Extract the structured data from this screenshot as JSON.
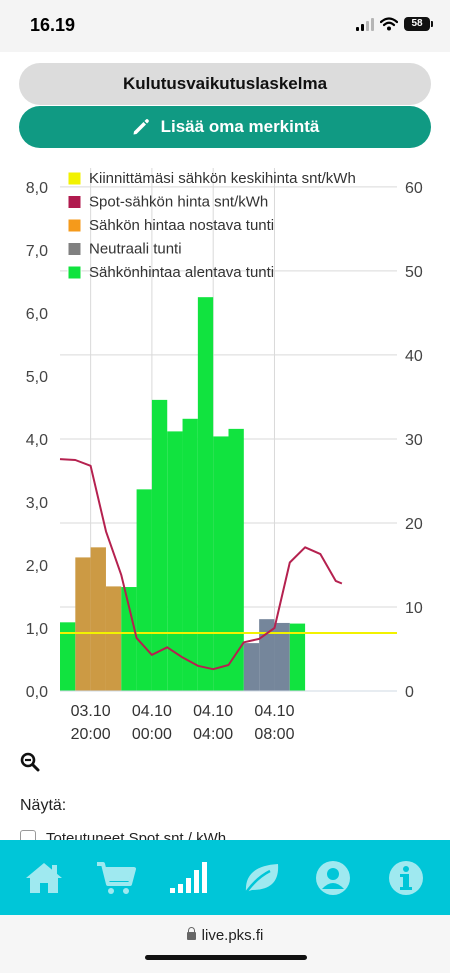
{
  "status_bar": {
    "time": "16.19",
    "battery": "58"
  },
  "buttons": {
    "report_label": "Kulutusvaikutuslaskelma",
    "add_entry_label": "Lisää oma merkintä"
  },
  "chart_data": {
    "type": "bar",
    "legend": [
      {
        "label": "Kiinnittämäsi sähkön keskihinta snt/kWh",
        "color": "#f2f200"
      },
      {
        "label": "Spot-sähkön hinta snt/kWh",
        "color": "#b01a4e"
      },
      {
        "label": "Sähkön hintaa nostava tunti",
        "color": "#f59a1b"
      },
      {
        "label": "Neutraali tunti",
        "color": "#808080"
      },
      {
        "label": "Sähkönhintaa alentava tunti",
        "color": "#10e33e"
      }
    ],
    "colors": {
      "raise": "#cc9a44",
      "neutral": "#75869b",
      "lower": "#11e33f",
      "spot_line": "#b5214f",
      "fixed_line": "#f2f200"
    },
    "x_hours": [
      18,
      19,
      20,
      21,
      22,
      23,
      24,
      25,
      26,
      27,
      28,
      29,
      30,
      31,
      32,
      33,
      34,
      35,
      36,
      37,
      38,
      39,
      40
    ],
    "x_ticks": [
      {
        "x": 20,
        "date": "03.10",
        "time": "20:00"
      },
      {
        "x": 24,
        "date": "04.10",
        "time": "00:00"
      },
      {
        "x": 28,
        "date": "04.10",
        "time": "04:00"
      },
      {
        "x": 32,
        "date": "04.10",
        "time": "08:00"
      }
    ],
    "bars": [
      {
        "x": 18.5,
        "value": 1.09,
        "kind": "lower"
      },
      {
        "x": 19.5,
        "value": 2.12,
        "kind": "raise"
      },
      {
        "x": 20.5,
        "value": 2.28,
        "kind": "raise"
      },
      {
        "x": 21.5,
        "value": 1.66,
        "kind": "raise"
      },
      {
        "x": 22.5,
        "value": 1.65,
        "kind": "lower"
      },
      {
        "x": 23.5,
        "value": 3.2,
        "kind": "lower"
      },
      {
        "x": 24.5,
        "value": 4.62,
        "kind": "lower"
      },
      {
        "x": 25.5,
        "value": 4.12,
        "kind": "lower"
      },
      {
        "x": 26.5,
        "value": 4.32,
        "kind": "lower"
      },
      {
        "x": 27.5,
        "value": 6.25,
        "kind": "lower"
      },
      {
        "x": 28.5,
        "value": 4.04,
        "kind": "lower"
      },
      {
        "x": 29.5,
        "value": 4.16,
        "kind": "lower"
      },
      {
        "x": 30.5,
        "value": 0.76,
        "kind": "neutral"
      },
      {
        "x": 31.5,
        "value": 1.14,
        "kind": "neutral"
      },
      {
        "x": 32.5,
        "value": 1.08,
        "kind": "neutral"
      },
      {
        "x": 33.5,
        "value": 1.07,
        "kind": "lower"
      }
    ],
    "spot_price": [
      {
        "x": 18,
        "y": 27.6
      },
      {
        "x": 19,
        "y": 27.5
      },
      {
        "x": 20,
        "y": 26.8
      },
      {
        "x": 21,
        "y": 19.0
      },
      {
        "x": 22,
        "y": 13.8
      },
      {
        "x": 23,
        "y": 6.3
      },
      {
        "x": 24,
        "y": 4.3
      },
      {
        "x": 25,
        "y": 5.2
      },
      {
        "x": 26,
        "y": 4.0
      },
      {
        "x": 27,
        "y": 3.0
      },
      {
        "x": 28,
        "y": 2.6
      },
      {
        "x": 29,
        "y": 3.1
      },
      {
        "x": 30,
        "y": 5.8
      },
      {
        "x": 31,
        "y": 6.2
      },
      {
        "x": 32,
        "y": 7.5
      },
      {
        "x": 33,
        "y": 15.3
      },
      {
        "x": 34,
        "y": 17.1
      },
      {
        "x": 35,
        "y": 16.3
      },
      {
        "x": 36,
        "y": 13.1
      },
      {
        "x": 36.4,
        "y": 12.8
      }
    ],
    "fixed_price": 6.9,
    "y_left": {
      "min": 0,
      "max": 8.3,
      "ticks": [
        "0,0",
        "1,0",
        "2,0",
        "3,0",
        "4,0",
        "5,0",
        "6,0",
        "7,0",
        "8,0"
      ]
    },
    "y_right": {
      "min": 0,
      "max": 62.25,
      "ticks": [
        "0",
        "10",
        "20",
        "30",
        "40",
        "50",
        "60"
      ]
    },
    "grid": true,
    "legend_position": "top-left"
  },
  "controls": {
    "show_label": "Näytä:",
    "hidden_row_label": "Toteutuneet Spot snt / kWh"
  },
  "tab_bar": {
    "items": [
      {
        "icon": "home-icon"
      },
      {
        "icon": "cart-icon"
      },
      {
        "icon": "signal-bars-icon"
      },
      {
        "icon": "leaf-icon"
      },
      {
        "icon": "user-icon"
      },
      {
        "icon": "info-icon"
      }
    ]
  },
  "browser": {
    "url": "live.pks.fi"
  }
}
